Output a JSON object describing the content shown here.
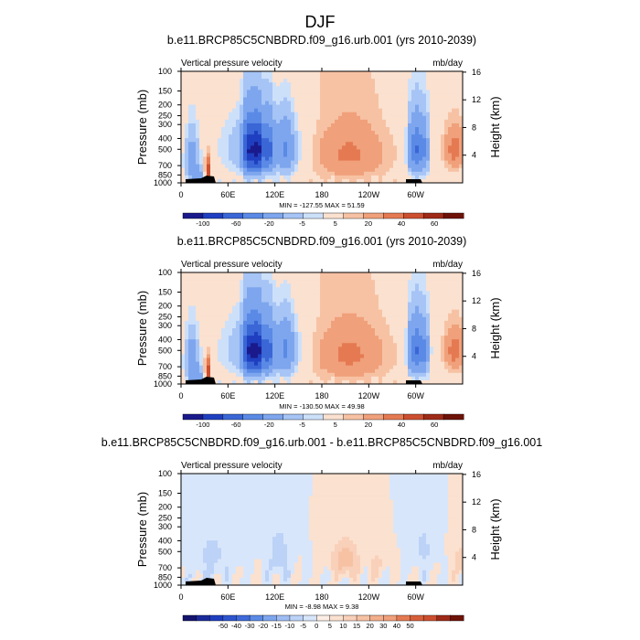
{
  "title": "DJF",
  "colors": {
    "levels13": [
      "#1a1a8c",
      "#1f3fc0",
      "#3a66d6",
      "#5a8ae6",
      "#7ea6ee",
      "#a6c4f5",
      "#cde0fa",
      "#fbe1cf",
      "#f7c2a4",
      "#f0a07a",
      "#e57a52",
      "#cc4f2f",
      "#9e2a17",
      "#6e1208"
    ],
    "levels21": [
      "#14146e",
      "#1a2a9a",
      "#1f3fc0",
      "#2e55ce",
      "#3f6ad9",
      "#5a8ae6",
      "#7ea6ee",
      "#9fbcf3",
      "#bcd2f7",
      "#d8e6fb",
      "#fdeee5",
      "#fbe1cf",
      "#f9d0b9",
      "#f7c2a4",
      "#f3ae8a",
      "#f0a07a",
      "#e57a52",
      "#d85f3b",
      "#cc4f2f",
      "#9e2a17",
      "#6e1208"
    ]
  },
  "chart_data": [
    {
      "type": "heatmap",
      "title": "b.e11.BRCP85C5CNBDRD.f09_g16.urb.001 (yrs 2010-2039)",
      "left_label": "Vertical pressure velocity",
      "right_label": "mb/day",
      "xlabel": "",
      "ylabel": "Pressure (mb)",
      "ylabel_right": "Height (km)",
      "x_ticks": [
        "0",
        "60E",
        "120E",
        "180",
        "120W",
        "60W"
      ],
      "y_ticks": [
        "100",
        "150",
        "200",
        "250",
        "300",
        "400",
        "500",
        "700",
        "850",
        "1000"
      ],
      "y_right_ticks": [
        "16",
        "12",
        "8",
        "4"
      ],
      "stats": "MIN = -127.55   MAX =   51.59",
      "min": -127.55,
      "max": 51.59,
      "colorbar_labels": [
        "-100",
        "-60",
        "-20",
        "-5",
        "5",
        "20",
        "40",
        "60"
      ],
      "colorbar_levels": 14,
      "amplitude": 1.0
    },
    {
      "type": "heatmap",
      "title": "b.e11.BRCP85C5CNBDRD.f09_g16.001 (yrs 2010-2039)",
      "left_label": "Vertical pressure velocity",
      "right_label": "mb/day",
      "xlabel": "",
      "ylabel": "Pressure (mb)",
      "ylabel_right": "Height (km)",
      "x_ticks": [
        "0",
        "60E",
        "120E",
        "180",
        "120W",
        "60W"
      ],
      "y_ticks": [
        "100",
        "150",
        "200",
        "250",
        "300",
        "400",
        "500",
        "700",
        "850",
        "1000"
      ],
      "y_right_ticks": [
        "16",
        "12",
        "8",
        "4"
      ],
      "stats": "MIN = -130.50   MAX =   49.98",
      "min": -130.5,
      "max": 49.98,
      "colorbar_labels": [
        "-100",
        "-60",
        "-20",
        "-5",
        "5",
        "20",
        "40",
        "60"
      ],
      "colorbar_levels": 14,
      "amplitude": 1.0
    },
    {
      "type": "heatmap",
      "title": "b.e11.BRCP85C5CNBDRD.f09_g16.urb.001 - b.e11.BRCP85C5CNBDRD.f09_g16.001",
      "left_label": "Vertical pressure velocity",
      "right_label": "mb/day",
      "xlabel": "",
      "ylabel": "Pressure (mb)",
      "ylabel_right": "Height (km)",
      "x_ticks": [
        "0",
        "60E",
        "120E",
        "180",
        "120W",
        "60W"
      ],
      "y_ticks": [
        "100",
        "150",
        "200",
        "250",
        "300",
        "400",
        "500",
        "700",
        "850",
        "1000"
      ],
      "y_right_ticks": [
        "16",
        "12",
        "8",
        "4"
      ],
      "stats": "MIN =  -8.98   MAX =   9.38",
      "min": -8.98,
      "max": 9.38,
      "colorbar_labels": [
        "-50",
        "-40",
        "-30",
        "-20",
        "-15",
        "-10",
        "-5",
        "0",
        "5",
        "10",
        "15",
        "20",
        "30",
        "40",
        "50"
      ],
      "colorbar_levels": 21,
      "amplitude": 0.14
    }
  ]
}
